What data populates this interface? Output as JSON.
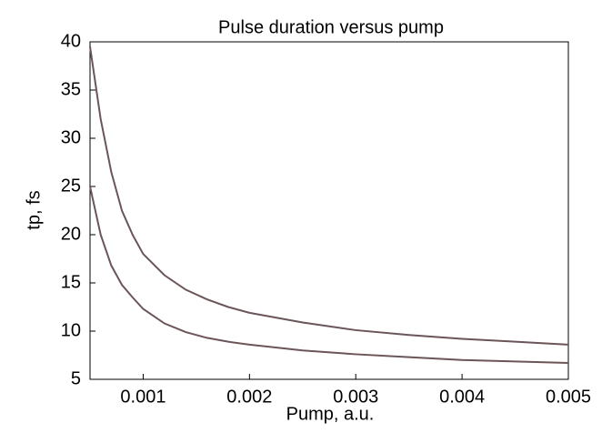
{
  "chart_data": {
    "type": "line",
    "title": "Pulse duration versus pump",
    "x_label": "Pump, a.u.",
    "y_label": "tp, fs",
    "x": [
      0.0005,
      0.0006,
      0.0007,
      0.0008,
      0.0009,
      0.001,
      0.0012,
      0.0014,
      0.0016,
      0.0018,
      0.002,
      0.0025,
      0.003,
      0.0035,
      0.004,
      0.0045,
      0.005
    ],
    "series": [
      {
        "color": "#6b5558",
        "values": [
          39.5,
          32,
          26.5,
          22.5,
          20,
          18,
          15.8,
          14.3,
          13.3,
          12.5,
          11.9,
          10.9,
          10.1,
          9.6,
          9.2,
          8.9,
          8.6
        ]
      },
      {
        "color": "#6b5558",
        "values": [
          25,
          20,
          16.8,
          14.8,
          13.5,
          12.3,
          10.8,
          9.9,
          9.3,
          8.9,
          8.6,
          8.0,
          7.6,
          7.3,
          7.0,
          6.85,
          6.7
        ]
      }
    ],
    "xlim": [
      0.0005,
      0.005
    ],
    "ylim": [
      5,
      40
    ],
    "xticks": [
      0.001,
      0.002,
      0.003,
      0.004,
      0.005
    ],
    "yticks": [
      5,
      10,
      15,
      20,
      25,
      30,
      35,
      40
    ]
  }
}
